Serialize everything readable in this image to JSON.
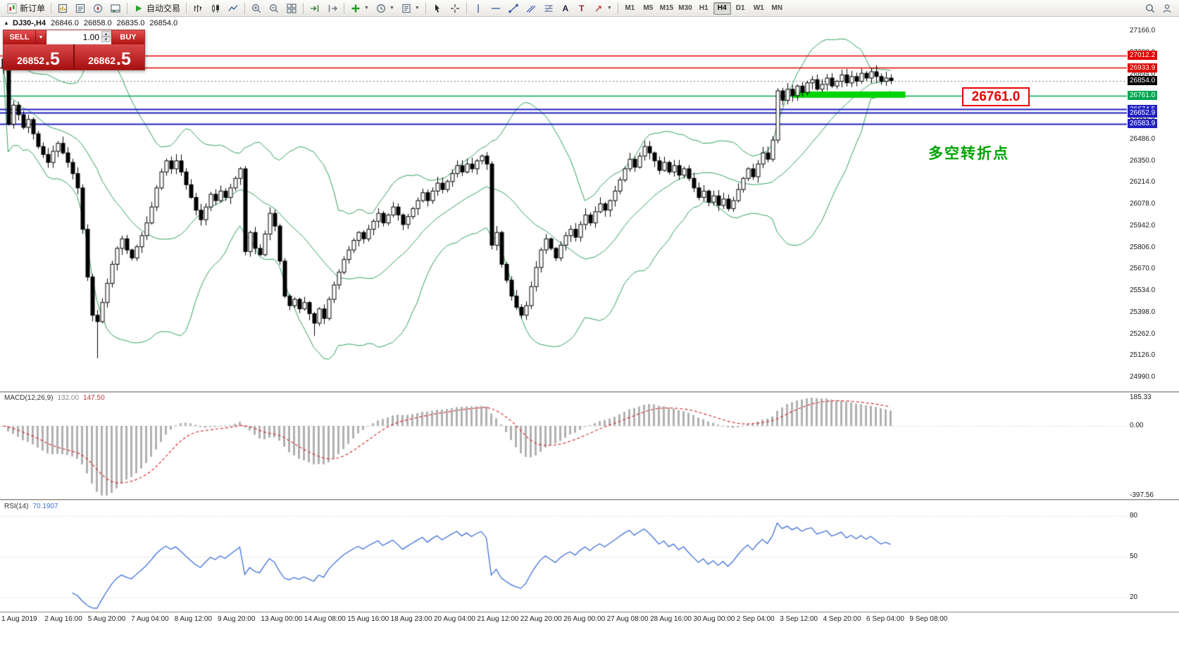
{
  "toolbar": {
    "new_order": "新订单",
    "autotrading": "自动交易",
    "text_tool": "A",
    "label_tool": "T",
    "timeframes": [
      "M1",
      "M5",
      "M15",
      "M30",
      "H1",
      "H4",
      "D1",
      "W1",
      "MN"
    ],
    "active_timeframe": "H4"
  },
  "glyphs": {
    "caret_down": "▼",
    "spin_up": "▲",
    "spin_down": "▼",
    "collapse": "▲"
  },
  "info_line": {
    "symbol_period": "DJ30-,H4",
    "open": "26846.0",
    "high": "26858.0",
    "low": "26835.0",
    "close": "26854.0"
  },
  "trade_panel": {
    "sell_label": "SELL",
    "buy_label": "BUY",
    "volume": "1.00",
    "sell_price_main": "26852",
    "sell_price_pips": ".5",
    "buy_price_main": "26862",
    "buy_price_pips": ".5"
  },
  "annotation": {
    "text": "多空转折点"
  },
  "callout": {
    "text": "26761.0"
  },
  "price_axis": {
    "ticks": [
      "27166.0",
      "27030.0",
      "26894.0",
      "26758.0",
      "26622.0",
      "26486.0",
      "26350.0",
      "26214.0",
      "26078.0",
      "25942.0",
      "25806.0",
      "25670.0",
      "25534.0",
      "25398.0",
      "25262.0",
      "25126.0",
      "24990.0"
    ]
  },
  "levels": [
    {
      "label": "27012.2",
      "value": 27012.2,
      "color": "#e00000",
      "width": 1.4,
      "is_current": false
    },
    {
      "label": "26933.9",
      "value": 26933.9,
      "color": "#e00000",
      "width": 1.4,
      "is_current": false
    },
    {
      "label": "26854.0",
      "value": 26854.0,
      "color": "#000000",
      "width": 1,
      "is_current": true
    },
    {
      "label": "26761.0",
      "value": 26761.0,
      "color": "#00a650",
      "width": 1.6,
      "is_current": false
    },
    {
      "label": "26674.5",
      "value": 26674.5,
      "color": "#2020c0",
      "width": 2.2,
      "is_current": false
    },
    {
      "label": "26652.9",
      "value": 26652.9,
      "color": "#2020c0",
      "width": 2.2,
      "is_current": false
    },
    {
      "label": "26583.9",
      "value": 26583.9,
      "color": "#2020c0",
      "width": 2.2,
      "is_current": false
    }
  ],
  "macd_panel": {
    "name": "MACD(12,26,9)",
    "value_main": "132.00",
    "value_signal": "147.50",
    "axis_labels": [
      "185.33",
      "0.00",
      "-397.56"
    ]
  },
  "rsi_panel": {
    "name": "RSI(14)",
    "value": "70.1907",
    "axis_labels": [
      "80",
      "50",
      "20"
    ]
  },
  "time_axis": [
    "1 Aug 2019",
    "2 Aug 16:00",
    "5 Aug 20:00",
    "7 Aug 04:00",
    "8 Aug 12:00",
    "9 Aug 20:00",
    "13 Aug 00:00",
    "14 Aug 08:00",
    "15 Aug 16:00",
    "18 Aug 23:00",
    "20 Aug 04:00",
    "21 Aug 12:00",
    "22 Aug 20:00",
    "26 Aug 00:00",
    "27 Aug 08:00",
    "28 Aug 16:00",
    "30 Aug 00:00",
    "2 Sep 04:00",
    "3 Sep 12:00",
    "4 Sep 20:00",
    "6 Sep 04:00",
    "9 Sep 08:00"
  ],
  "colors": {
    "bull": "#ffffff",
    "bear": "#000000",
    "wick": "#000000",
    "bollinger": "#2e9e5b",
    "macd_hist": "#b0b0b0",
    "macd_signal": "#d23030",
    "rsi": "#3e6fd8",
    "resistance_red": "#e00000",
    "support_blue": "#2020c0",
    "pivot_green": "#00a650",
    "highlight_green": "#00d400",
    "annotation_green": "#00a300",
    "trade_panel_red": "#c01515"
  },
  "chart_data": {
    "type": "candlestick",
    "symbol": "DJ30-",
    "timeframe": "H4",
    "price_axis_range": [
      24990.0,
      27166.0
    ],
    "indicators": {
      "bollinger_period": 20,
      "bollinger_dev": 2,
      "macd": [
        12,
        26,
        9
      ],
      "rsi_period": 14
    },
    "macd_value_range": [
      -397.56,
      185.33
    ],
    "closes": [
      26930,
      26580,
      26700,
      26640,
      26560,
      26610,
      26520,
      26440,
      26390,
      26340,
      26410,
      26460,
      26400,
      26340,
      26270,
      26180,
      25920,
      25620,
      25380,
      25340,
      25460,
      25580,
      25700,
      25800,
      25860,
      25790,
      25740,
      25810,
      25880,
      25960,
      26060,
      26180,
      26280,
      26350,
      26300,
      26350,
      26280,
      26200,
      26120,
      26040,
      25980,
      26060,
      26140,
      26100,
      26160,
      26120,
      26180,
      26240,
      26300,
      25780,
      25900,
      25800,
      25760,
      25890,
      26020,
      25940,
      25720,
      25500,
      25440,
      25480,
      25420,
      25460,
      25390,
      25330,
      25420,
      25360,
      25480,
      25570,
      25650,
      25730,
      25790,
      25850,
      25900,
      25860,
      25920,
      25970,
      26020,
      25960,
      26010,
      26060,
      26010,
      25950,
      26000,
      26050,
      26100,
      26150,
      26100,
      26160,
      26210,
      26170,
      26220,
      26270,
      26320,
      26280,
      26330,
      26300,
      26350,
      26380,
      26330,
      25820,
      25900,
      25700,
      25600,
      25500,
      25430,
      25380,
      25440,
      25560,
      25680,
      25790,
      25860,
      25800,
      25740,
      25820,
      25880,
      25920,
      25870,
      25950,
      26010,
      25960,
      26030,
      26080,
      26040,
      26100,
      26160,
      26230,
      26300,
      26360,
      26310,
      26380,
      26440,
      26400,
      26350,
      26290,
      26340,
      26280,
      26320,
      26260,
      26300,
      26240,
      26180,
      26120,
      26160,
      26090,
      26130,
      26070,
      26110,
      26050,
      26100,
      26170,
      26240,
      26300,
      26250,
      26330,
      26400,
      26360,
      26480,
      26790,
      26730,
      26800,
      26760,
      26820,
      26780,
      26840,
      26860,
      26800,
      26830,
      26870,
      26820,
      26850,
      26890,
      26840,
      26880,
      26850,
      26900,
      26870,
      26910,
      26880,
      26850,
      26870,
      26854
    ],
    "special_lows": [
      {
        "i": 19,
        "low": 25110
      },
      {
        "i": 63,
        "low": 25250
      }
    ],
    "highlight_segment": {
      "i1": 160,
      "i2": 183,
      "price": 26766,
      "thickness": 9
    }
  }
}
